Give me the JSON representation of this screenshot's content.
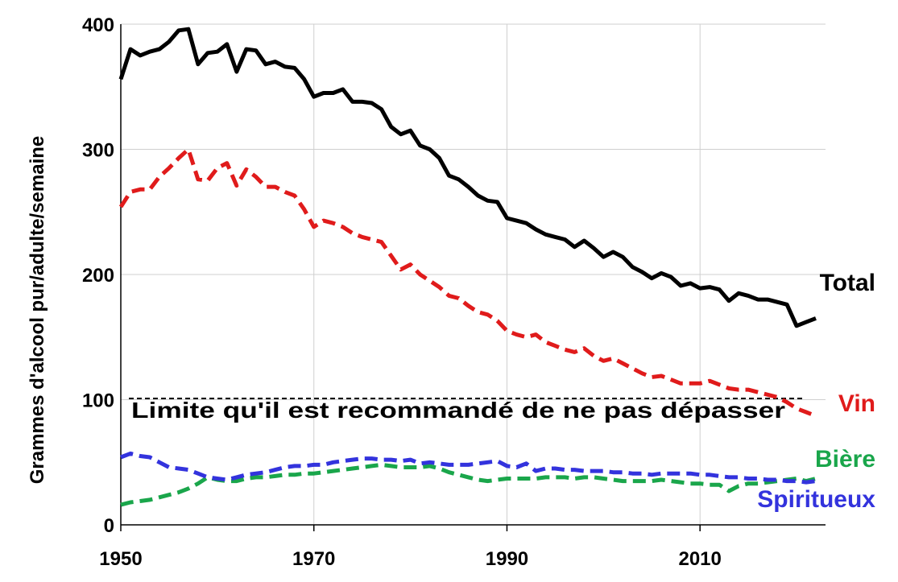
{
  "chart_data": {
    "type": "line",
    "title": "",
    "xlabel": "",
    "ylabel": "Grammes d'alcool pur/adulte/semaine",
    "xlim": [
      1950,
      2023
    ],
    "ylim": [
      0,
      400
    ],
    "x_ticks": [
      "1950",
      "1970",
      "1990",
      "2010"
    ],
    "y_ticks": [
      "0",
      "100",
      "200",
      "300",
      "400"
    ],
    "grid": true,
    "series": [
      {
        "name": "Total",
        "color": "#000000",
        "style": "solid",
        "x": [
          1950,
          1951,
          1952,
          1953,
          1954,
          1955,
          1956,
          1957,
          1958,
          1959,
          1960,
          1961,
          1962,
          1963,
          1964,
          1965,
          1966,
          1967,
          1968,
          1969,
          1970,
          1971,
          1972,
          1973,
          1974,
          1975,
          1976,
          1977,
          1978,
          1979,
          1980,
          1981,
          1982,
          1983,
          1984,
          1985,
          1986,
          1987,
          1988,
          1989,
          1990,
          1991,
          1992,
          1993,
          1994,
          1995,
          1996,
          1997,
          1998,
          1999,
          2000,
          2001,
          2002,
          2003,
          2004,
          2005,
          2006,
          2007,
          2008,
          2009,
          2010,
          2011,
          2012,
          2013,
          2014,
          2015,
          2016,
          2017,
          2018,
          2019,
          2020,
          2021,
          2022
        ],
        "values": [
          356,
          380,
          375,
          378,
          380,
          386,
          395,
          396,
          368,
          377,
          378,
          384,
          362,
          380,
          379,
          368,
          370,
          366,
          365,
          356,
          342,
          345,
          345,
          348,
          338,
          338,
          337,
          332,
          318,
          312,
          315,
          303,
          300,
          293,
          279,
          276,
          270,
          263,
          259,
          258,
          245,
          243,
          241,
          236,
          232,
          230,
          228,
          222,
          227,
          221,
          214,
          218,
          214,
          206,
          202,
          197,
          201,
          198,
          191,
          193,
          189,
          190,
          188,
          179,
          185,
          183,
          180,
          180,
          178,
          176,
          159,
          162,
          165
        ]
      },
      {
        "name": "Vin",
        "color": "#e01b1b",
        "style": "dashed",
        "x": [
          1950,
          1951,
          1952,
          1953,
          1954,
          1955,
          1956,
          1957,
          1958,
          1959,
          1960,
          1961,
          1962,
          1963,
          1964,
          1965,
          1966,
          1967,
          1968,
          1969,
          1970,
          1971,
          1972,
          1973,
          1974,
          1975,
          1976,
          1977,
          1978,
          1979,
          1980,
          1981,
          1982,
          1983,
          1984,
          1985,
          1986,
          1987,
          1988,
          1989,
          1990,
          1991,
          1992,
          1993,
          1994,
          1995,
          1996,
          1997,
          1998,
          1999,
          2000,
          2001,
          2002,
          2003,
          2004,
          2005,
          2006,
          2007,
          2008,
          2009,
          2010,
          2011,
          2012,
          2013,
          2014,
          2015,
          2016,
          2017,
          2018,
          2019,
          2020,
          2021,
          2022
        ],
        "values": [
          254,
          266,
          268,
          268,
          278,
          285,
          293,
          300,
          276,
          275,
          285,
          289,
          271,
          284,
          278,
          270,
          270,
          266,
          263,
          252,
          238,
          243,
          241,
          238,
          233,
          230,
          228,
          226,
          215,
          204,
          208,
          200,
          195,
          190,
          183,
          181,
          175,
          170,
          168,
          163,
          155,
          152,
          150,
          152,
          146,
          143,
          140,
          138,
          141,
          135,
          131,
          133,
          129,
          125,
          121,
          118,
          119,
          116,
          113,
          113,
          113,
          115,
          112,
          109,
          108,
          108,
          106,
          104,
          102,
          98,
          93,
          90,
          87
        ]
      },
      {
        "name": "Bière",
        "color": "#1aa64b",
        "style": "dashed",
        "x": [
          1950,
          1951,
          1952,
          1953,
          1954,
          1955,
          1956,
          1957,
          1958,
          1959,
          1960,
          1961,
          1962,
          1963,
          1964,
          1965,
          1966,
          1967,
          1968,
          1969,
          1970,
          1971,
          1972,
          1973,
          1974,
          1975,
          1976,
          1977,
          1978,
          1979,
          1980,
          1981,
          1982,
          1983,
          1984,
          1985,
          1986,
          1987,
          1988,
          1989,
          1990,
          1991,
          1992,
          1993,
          1994,
          1995,
          1996,
          1997,
          1998,
          1999,
          2000,
          2001,
          2002,
          2003,
          2004,
          2005,
          2006,
          2007,
          2008,
          2009,
          2010,
          2011,
          2012,
          2013,
          2014,
          2015,
          2016,
          2017,
          2018,
          2019,
          2020,
          2021,
          2022
        ],
        "values": [
          16,
          18,
          19,
          20,
          22,
          24,
          26,
          29,
          33,
          38,
          36,
          35,
          35,
          37,
          38,
          38,
          39,
          40,
          40,
          41,
          41,
          42,
          43,
          44,
          45,
          46,
          47,
          48,
          47,
          46,
          46,
          46,
          47,
          45,
          42,
          40,
          38,
          36,
          35,
          36,
          37,
          37,
          37,
          37,
          38,
          38,
          38,
          37,
          38,
          38,
          37,
          36,
          35,
          35,
          35,
          35,
          36,
          35,
          34,
          33,
          33,
          32,
          32,
          27,
          31,
          33,
          33,
          34,
          35,
          36,
          37,
          35,
          37
        ]
      },
      {
        "name": "Spiritueux",
        "color": "#3333dd",
        "style": "dashed",
        "x": [
          1950,
          1951,
          1952,
          1953,
          1954,
          1955,
          1956,
          1957,
          1958,
          1959,
          1960,
          1961,
          1962,
          1963,
          1964,
          1965,
          1966,
          1967,
          1968,
          1969,
          1970,
          1971,
          1972,
          1973,
          1974,
          1975,
          1976,
          1977,
          1978,
          1979,
          1980,
          1981,
          1982,
          1983,
          1984,
          1985,
          1986,
          1987,
          1988,
          1989,
          1990,
          1991,
          1992,
          1993,
          1994,
          1995,
          1996,
          1997,
          1998,
          1999,
          2000,
          2001,
          2002,
          2003,
          2004,
          2005,
          2006,
          2007,
          2008,
          2009,
          2010,
          2011,
          2012,
          2013,
          2014,
          2015,
          2016,
          2017,
          2018,
          2019,
          2020,
          2021,
          2022
        ],
        "values": [
          54,
          57,
          55,
          54,
          50,
          46,
          45,
          44,
          41,
          38,
          37,
          36,
          38,
          40,
          41,
          42,
          44,
          46,
          47,
          47,
          48,
          48,
          50,
          51,
          52,
          53,
          53,
          52,
          52,
          51,
          52,
          49,
          50,
          49,
          48,
          48,
          48,
          49,
          50,
          51,
          47,
          46,
          49,
          43,
          45,
          45,
          44,
          44,
          43,
          43,
          43,
          42,
          42,
          41,
          41,
          40,
          41,
          41,
          41,
          41,
          40,
          40,
          39,
          38,
          38,
          37,
          37,
          36,
          36,
          35,
          35,
          34,
          35
        ]
      }
    ],
    "reference_line": {
      "value": 101,
      "color": "#000000",
      "style": "dashed",
      "label": "Limite qu'il est recommandé de ne pas dépasser"
    }
  }
}
